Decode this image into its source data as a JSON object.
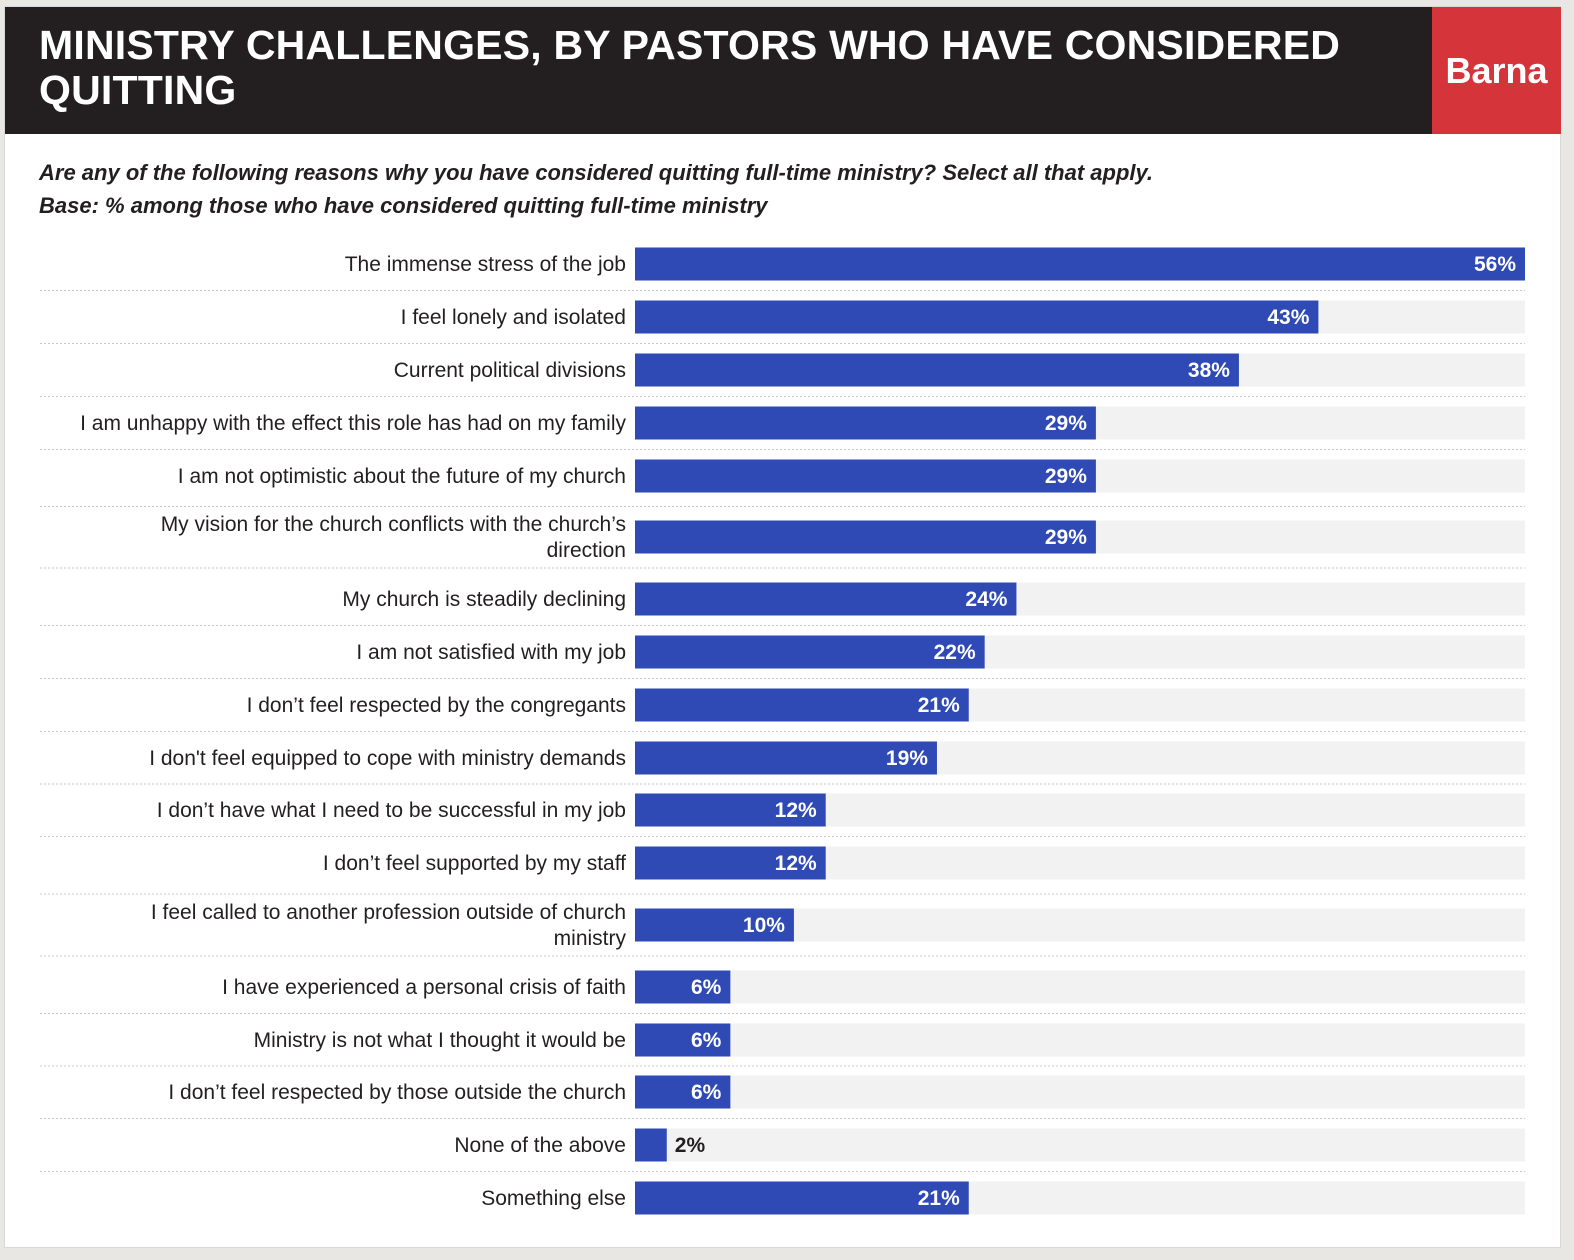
{
  "header": {
    "title": "Ministry challenges, by pastors who have considered quitting",
    "brand": "Barna"
  },
  "subtitle": {
    "question": "Are any of the following reasons why you have considered quitting full-time ministry? Select all that apply.",
    "base": "Base: % among those who have considered quitting full-time ministry"
  },
  "colors": {
    "bar": "#2f4ab5",
    "track": "#f2f2f2",
    "header_bg": "#231f20",
    "brand_bg": "#d4343a"
  },
  "chart_data": {
    "type": "bar",
    "orientation": "horizontal",
    "categories": [
      [
        "The immense stress of the job"
      ],
      [
        "I feel lonely and isolated"
      ],
      [
        "Current political divisions"
      ],
      [
        "I am unhappy with the effect this role has had on my family"
      ],
      [
        "I am not optimistic about the future of my church"
      ],
      [
        "My vision for the church conflicts with the church’s",
        "direction"
      ],
      [
        "My church is steadily declining"
      ],
      [
        "I am not satisfied with my job"
      ],
      [
        "I don’t feel respected by the congregants"
      ],
      [
        "I don't feel equipped to cope with ministry demands"
      ],
      [
        "I don’t have what I need to be successful in my job"
      ],
      [
        "I don’t feel supported by my staff"
      ],
      [
        "I feel called to another profession outside of church",
        "ministry"
      ],
      [
        "I have experienced a personal crisis of faith"
      ],
      [
        "Ministry is not what I thought it would be"
      ],
      [
        "I don’t feel respected by those outside the church"
      ],
      [
        "None of the above"
      ],
      [
        "Something else"
      ]
    ],
    "values": [
      56,
      43,
      38,
      29,
      29,
      29,
      24,
      22,
      21,
      19,
      12,
      12,
      10,
      6,
      6,
      6,
      2,
      21
    ],
    "value_labels": [
      "56%",
      "43%",
      "38%",
      "29%",
      "29%",
      "29%",
      "24%",
      "22%",
      "21%",
      "19%",
      "12%",
      "12%",
      "10%",
      "6%",
      "6%",
      "6%",
      "2%",
      "21%"
    ],
    "xlim": [
      0,
      56
    ]
  }
}
